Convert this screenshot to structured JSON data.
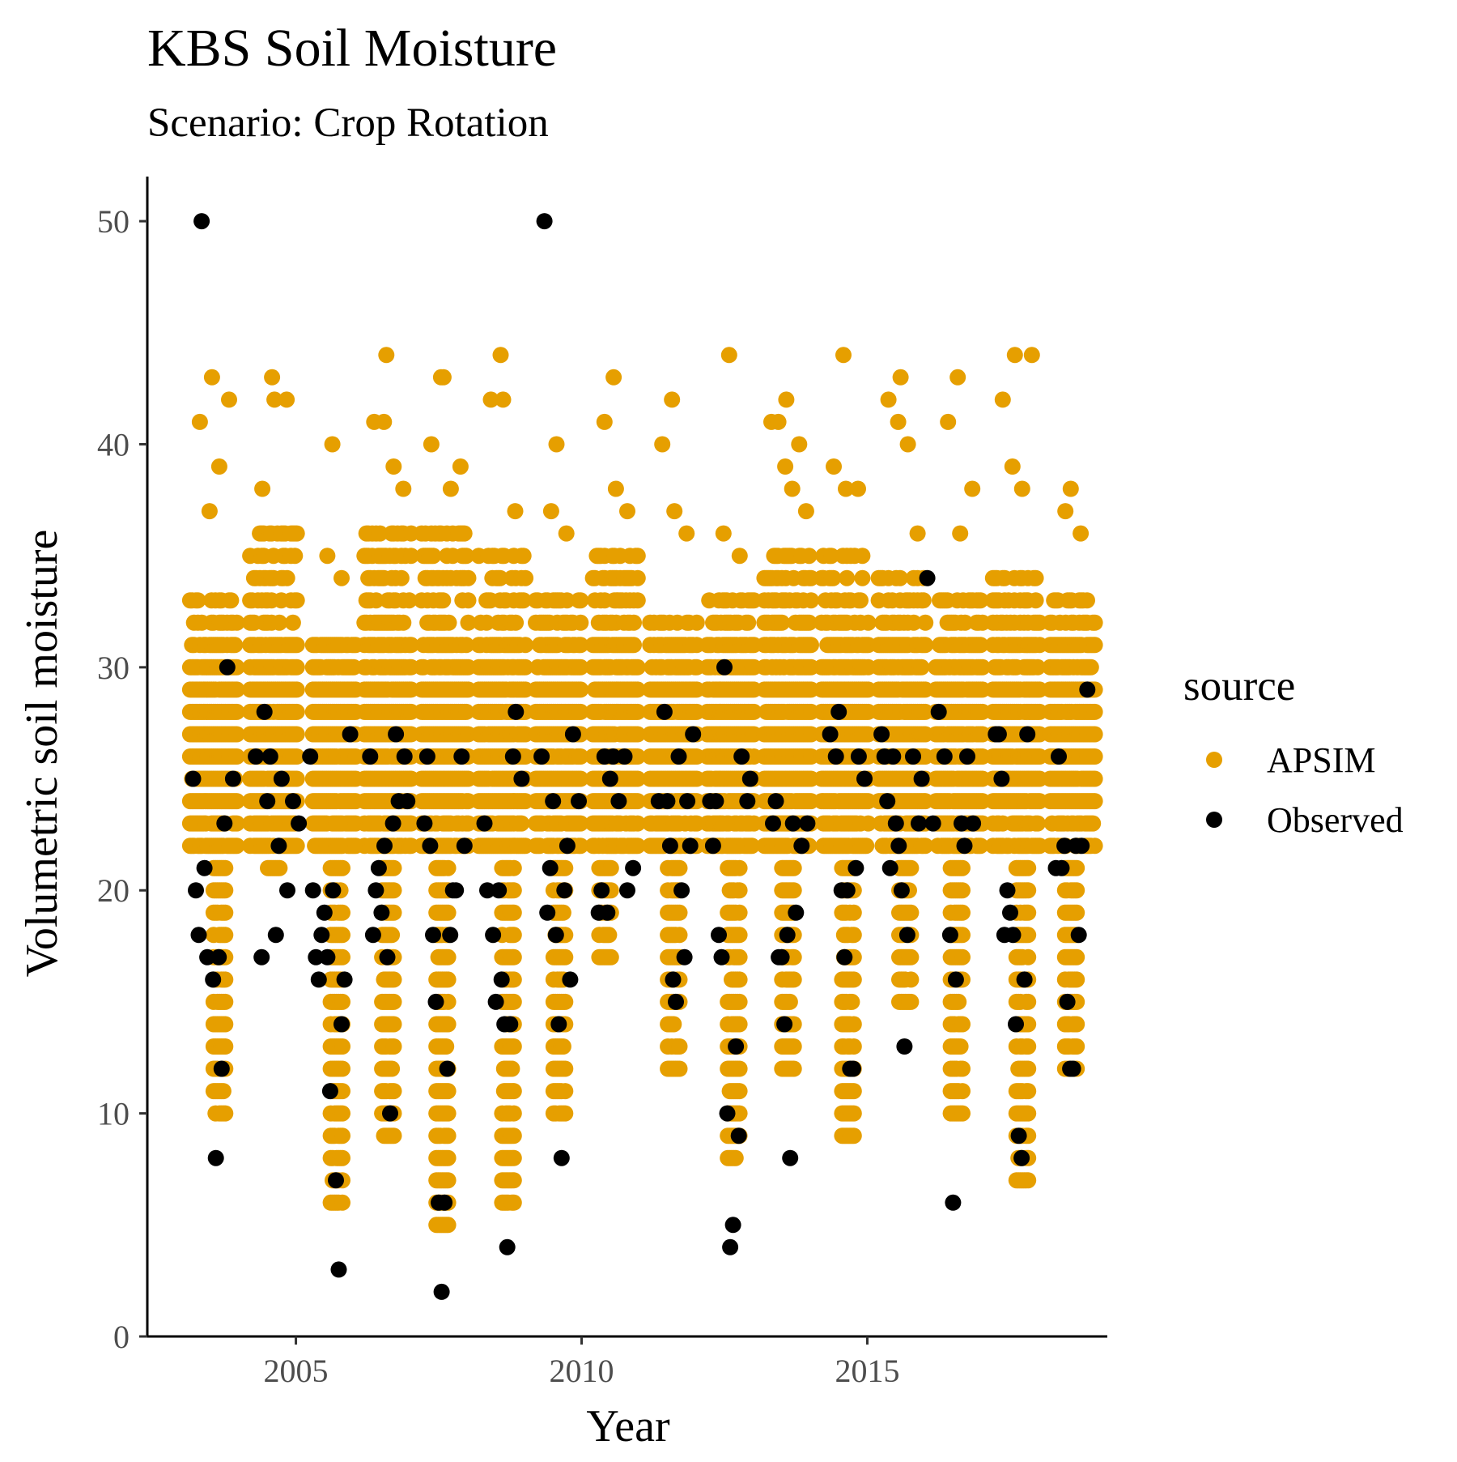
{
  "chart_data": {
    "type": "scatter",
    "title": "KBS Soil Moisture",
    "subtitle": "Scenario: Crop Rotation",
    "xlabel": "Year",
    "ylabel": "Volumetric soil moisture",
    "xlim": [
      2002.4,
      2019.2
    ],
    "ylim": [
      0,
      52
    ],
    "x_ticks": [
      2005,
      2010,
      2015
    ],
    "x_tick_labels": [
      "2005",
      "2010",
      "2015"
    ],
    "y_ticks": [
      0,
      10,
      20,
      30,
      40,
      50
    ],
    "y_tick_labels": [
      "0",
      "10",
      "20",
      "30",
      "40",
      "50"
    ],
    "grid": false,
    "legend": {
      "title": "source",
      "position": "right"
    },
    "series": [
      {
        "name": "APSIM",
        "color": "#E69F00",
        "seasons": [
          {
            "start": 2003.15,
            "end": 2004.0,
            "low": 10,
            "high": 33,
            "peak": 43,
            "dip": 2003.65,
            "outliers": [
              41,
              37,
              39,
              42
            ]
          },
          {
            "start": 2004.2,
            "end": 2005.05,
            "low": 21,
            "high": 36,
            "peak": 43,
            "dip": 2004.6,
            "outliers": [
              38,
              42,
              42
            ]
          },
          {
            "start": 2005.3,
            "end": 2006.05,
            "low": 6,
            "high": 31,
            "peak": 40,
            "dip": 2005.7,
            "outliers": [
              35,
              34
            ]
          },
          {
            "start": 2006.2,
            "end": 2007.05,
            "low": 9,
            "high": 36,
            "peak": 44,
            "dip": 2006.6,
            "outliers": [
              41,
              41,
              39,
              38
            ]
          },
          {
            "start": 2007.2,
            "end": 2008.05,
            "low": 5,
            "high": 36,
            "peak": 43,
            "dip": 2007.55,
            "outliers": [
              40,
              43,
              38,
              39
            ]
          },
          {
            "start": 2008.2,
            "end": 2009.05,
            "low": 6,
            "high": 35,
            "peak": 44,
            "dip": 2008.7,
            "outliers": [
              42,
              42,
              37
            ]
          },
          {
            "start": 2009.2,
            "end": 2010.0,
            "low": 10,
            "high": 33,
            "peak": 40,
            "dip": 2009.6,
            "outliers": [
              37,
              36
            ]
          },
          {
            "start": 2010.2,
            "end": 2011.0,
            "low": 17,
            "high": 35,
            "peak": 43,
            "dip": 2010.4,
            "outliers": [
              41,
              38,
              37
            ]
          },
          {
            "start": 2011.2,
            "end": 2012.05,
            "low": 12,
            "high": 32,
            "peak": 42,
            "dip": 2011.6,
            "outliers": [
              40,
              37,
              36
            ]
          },
          {
            "start": 2012.2,
            "end": 2013.05,
            "low": 8,
            "high": 33,
            "peak": 44,
            "dip": 2012.65,
            "outliers": [
              36,
              35
            ]
          },
          {
            "start": 2013.2,
            "end": 2014.05,
            "low": 12,
            "high": 35,
            "peak": 42,
            "dip": 2013.6,
            "outliers": [
              41,
              41,
              39,
              38,
              40,
              37
            ]
          },
          {
            "start": 2014.2,
            "end": 2015.05,
            "low": 9,
            "high": 35,
            "peak": 44,
            "dip": 2014.65,
            "outliers": [
              39,
              38,
              38
            ]
          },
          {
            "start": 2015.2,
            "end": 2016.05,
            "low": 15,
            "high": 34,
            "peak": 43,
            "dip": 2015.65,
            "outliers": [
              42,
              41,
              40,
              36
            ]
          },
          {
            "start": 2016.2,
            "end": 2017.05,
            "low": 10,
            "high": 33,
            "peak": 43,
            "dip": 2016.55,
            "outliers": [
              41,
              36,
              38
            ]
          },
          {
            "start": 2017.2,
            "end": 2018.05,
            "low": 7,
            "high": 34,
            "peak": 44,
            "dip": 2017.7,
            "outliers": [
              42,
              39,
              38,
              44
            ]
          },
          {
            "start": 2018.2,
            "end": 2019.0,
            "low": 12,
            "high": 33,
            "peak": 38,
            "dip": 2018.55,
            "outliers": [
              37,
              36
            ]
          }
        ]
      },
      {
        "name": "Observed",
        "color": "#000000",
        "points": [
          [
            2003.35,
            50
          ],
          [
            2003.2,
            25
          ],
          [
            2003.25,
            20
          ],
          [
            2003.3,
            18
          ],
          [
            2003.4,
            21
          ],
          [
            2003.45,
            17
          ],
          [
            2003.55,
            16
          ],
          [
            2003.6,
            8
          ],
          [
            2003.65,
            17
          ],
          [
            2003.7,
            12
          ],
          [
            2003.75,
            23
          ],
          [
            2003.8,
            30
          ],
          [
            2003.9,
            25
          ],
          [
            2004.3,
            26
          ],
          [
            2004.4,
            17
          ],
          [
            2004.45,
            28
          ],
          [
            2004.5,
            24
          ],
          [
            2004.55,
            26
          ],
          [
            2004.65,
            18
          ],
          [
            2004.7,
            22
          ],
          [
            2004.75,
            25
          ],
          [
            2004.85,
            20
          ],
          [
            2004.95,
            24
          ],
          [
            2005.05,
            23
          ],
          [
            2005.25,
            26
          ],
          [
            2005.3,
            20
          ],
          [
            2005.35,
            17
          ],
          [
            2005.4,
            16
          ],
          [
            2005.45,
            18
          ],
          [
            2005.5,
            19
          ],
          [
            2005.55,
            17
          ],
          [
            2005.6,
            11
          ],
          [
            2005.65,
            20
          ],
          [
            2005.7,
            7
          ],
          [
            2005.75,
            3
          ],
          [
            2005.8,
            14
          ],
          [
            2005.85,
            16
          ],
          [
            2005.95,
            27
          ],
          [
            2006.3,
            26
          ],
          [
            2006.35,
            18
          ],
          [
            2006.4,
            20
          ],
          [
            2006.45,
            21
          ],
          [
            2006.5,
            19
          ],
          [
            2006.55,
            22
          ],
          [
            2006.6,
            17
          ],
          [
            2006.65,
            10
          ],
          [
            2006.7,
            23
          ],
          [
            2006.75,
            27
          ],
          [
            2006.8,
            24
          ],
          [
            2006.9,
            26
          ],
          [
            2006.95,
            24
          ],
          [
            2007.25,
            23
          ],
          [
            2007.3,
            26
          ],
          [
            2007.35,
            22
          ],
          [
            2007.4,
            18
          ],
          [
            2007.45,
            15
          ],
          [
            2007.5,
            6
          ],
          [
            2007.55,
            2
          ],
          [
            2007.6,
            6
          ],
          [
            2007.65,
            12
          ],
          [
            2007.7,
            18
          ],
          [
            2007.75,
            20
          ],
          [
            2007.8,
            20
          ],
          [
            2007.9,
            26
          ],
          [
            2007.95,
            22
          ],
          [
            2008.3,
            23
          ],
          [
            2008.35,
            20
          ],
          [
            2008.45,
            18
          ],
          [
            2008.5,
            15
          ],
          [
            2008.55,
            20
          ],
          [
            2008.6,
            16
          ],
          [
            2008.65,
            14
          ],
          [
            2008.7,
            4
          ],
          [
            2008.75,
            14
          ],
          [
            2008.8,
            26
          ],
          [
            2008.85,
            28
          ],
          [
            2008.95,
            25
          ],
          [
            2009.3,
            26
          ],
          [
            2009.35,
            50
          ],
          [
            2009.4,
            19
          ],
          [
            2009.45,
            21
          ],
          [
            2009.5,
            24
          ],
          [
            2009.55,
            18
          ],
          [
            2009.6,
            14
          ],
          [
            2009.65,
            8
          ],
          [
            2009.7,
            20
          ],
          [
            2009.75,
            22
          ],
          [
            2009.8,
            16
          ],
          [
            2009.85,
            27
          ],
          [
            2009.95,
            24
          ],
          [
            2010.3,
            19
          ],
          [
            2010.35,
            20
          ],
          [
            2010.4,
            26
          ],
          [
            2010.45,
            19
          ],
          [
            2010.5,
            25
          ],
          [
            2010.55,
            26
          ],
          [
            2010.65,
            24
          ],
          [
            2010.75,
            26
          ],
          [
            2010.8,
            20
          ],
          [
            2010.9,
            21
          ],
          [
            2011.35,
            24
          ],
          [
            2011.45,
            28
          ],
          [
            2011.5,
            24
          ],
          [
            2011.55,
            22
          ],
          [
            2011.6,
            16
          ],
          [
            2011.65,
            15
          ],
          [
            2011.7,
            26
          ],
          [
            2011.75,
            20
          ],
          [
            2011.8,
            17
          ],
          [
            2011.85,
            24
          ],
          [
            2011.9,
            22
          ],
          [
            2011.95,
            27
          ],
          [
            2012.25,
            24
          ],
          [
            2012.3,
            22
          ],
          [
            2012.35,
            24
          ],
          [
            2012.4,
            18
          ],
          [
            2012.45,
            17
          ],
          [
            2012.5,
            30
          ],
          [
            2012.55,
            10
          ],
          [
            2012.6,
            4
          ],
          [
            2012.65,
            5
          ],
          [
            2012.7,
            13
          ],
          [
            2012.75,
            9
          ],
          [
            2012.8,
            26
          ],
          [
            2012.9,
            24
          ],
          [
            2012.95,
            25
          ],
          [
            2013.35,
            23
          ],
          [
            2013.4,
            24
          ],
          [
            2013.45,
            17
          ],
          [
            2013.5,
            17
          ],
          [
            2013.55,
            14
          ],
          [
            2013.6,
            18
          ],
          [
            2013.65,
            8
          ],
          [
            2013.7,
            23
          ],
          [
            2013.75,
            19
          ],
          [
            2013.85,
            22
          ],
          [
            2013.95,
            23
          ],
          [
            2014.35,
            27
          ],
          [
            2014.45,
            26
          ],
          [
            2014.5,
            28
          ],
          [
            2014.55,
            20
          ],
          [
            2014.6,
            17
          ],
          [
            2014.65,
            20
          ],
          [
            2014.7,
            12
          ],
          [
            2014.75,
            12
          ],
          [
            2014.8,
            21
          ],
          [
            2014.85,
            26
          ],
          [
            2014.95,
            25
          ],
          [
            2015.25,
            27
          ],
          [
            2015.3,
            26
          ],
          [
            2015.35,
            24
          ],
          [
            2015.4,
            21
          ],
          [
            2015.45,
            26
          ],
          [
            2015.5,
            23
          ],
          [
            2015.55,
            22
          ],
          [
            2015.6,
            20
          ],
          [
            2015.65,
            13
          ],
          [
            2015.7,
            18
          ],
          [
            2015.8,
            26
          ],
          [
            2015.9,
            23
          ],
          [
            2015.95,
            25
          ],
          [
            2016.05,
            34
          ],
          [
            2016.15,
            23
          ],
          [
            2016.25,
            28
          ],
          [
            2016.35,
            26
          ],
          [
            2016.45,
            18
          ],
          [
            2016.5,
            6
          ],
          [
            2016.55,
            16
          ],
          [
            2016.65,
            23
          ],
          [
            2016.7,
            22
          ],
          [
            2016.75,
            26
          ],
          [
            2016.85,
            23
          ],
          [
            2017.25,
            27
          ],
          [
            2017.3,
            27
          ],
          [
            2017.35,
            25
          ],
          [
            2017.4,
            18
          ],
          [
            2017.45,
            20
          ],
          [
            2017.5,
            19
          ],
          [
            2017.55,
            18
          ],
          [
            2017.6,
            14
          ],
          [
            2017.65,
            9
          ],
          [
            2017.7,
            8
          ],
          [
            2017.75,
            16
          ],
          [
            2017.8,
            27
          ],
          [
            2018.3,
            21
          ],
          [
            2018.35,
            26
          ],
          [
            2018.4,
            21
          ],
          [
            2018.45,
            22
          ],
          [
            2018.5,
            15
          ],
          [
            2018.55,
            12
          ],
          [
            2018.6,
            12
          ],
          [
            2018.65,
            22
          ],
          [
            2018.7,
            18
          ],
          [
            2018.75,
            22
          ],
          [
            2018.85,
            29
          ]
        ]
      }
    ]
  }
}
